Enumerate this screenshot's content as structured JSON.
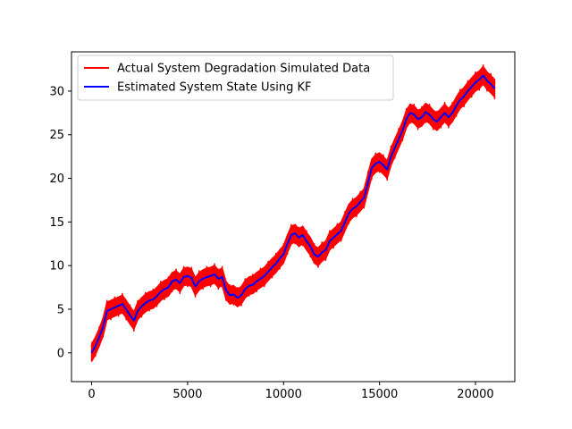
{
  "chart_data": {
    "type": "line",
    "title": "",
    "xlabel": "",
    "ylabel": "",
    "xlim": [
      -1050,
      22050
    ],
    "ylim": [
      -3.3,
      34.5
    ],
    "x_ticks": [
      0,
      5000,
      10000,
      15000,
      20000
    ],
    "y_ticks": [
      0,
      5,
      10,
      15,
      20,
      25,
      30
    ],
    "grid": false,
    "legend_position": "upper-left",
    "series": [
      {
        "name": "Actual System Degradation Simulated Data",
        "color": "#ff0000",
        "band_halfwidth": 1.0,
        "x": [
          0,
          200,
          400,
          600,
          800,
          1000,
          1200,
          1400,
          1600,
          1800,
          2000,
          2200,
          2400,
          2600,
          2800,
          3000,
          3200,
          3400,
          3600,
          3800,
          4000,
          4200,
          4400,
          4600,
          4800,
          5000,
          5200,
          5400,
          5600,
          5800,
          6000,
          6200,
          6400,
          6600,
          6800,
          7000,
          7200,
          7400,
          7600,
          7800,
          8000,
          8200,
          8400,
          8600,
          8800,
          9000,
          9200,
          9400,
          9600,
          9800,
          10000,
          10200,
          10400,
          10600,
          10800,
          11000,
          11200,
          11400,
          11600,
          11800,
          12000,
          12200,
          12400,
          12600,
          12800,
          13000,
          13200,
          13400,
          13600,
          13800,
          14000,
          14200,
          14400,
          14600,
          14800,
          15000,
          15200,
          15400,
          15600,
          15800,
          16000,
          16200,
          16400,
          16600,
          16800,
          17000,
          17200,
          17400,
          17600,
          17800,
          18000,
          18200,
          18400,
          18600,
          18800,
          19000,
          19200,
          19400,
          19600,
          19800,
          20000,
          20200,
          20400,
          20600,
          20800,
          21000
        ],
        "values": [
          0,
          0.8,
          1.8,
          3.0,
          4.8,
          5.0,
          5.2,
          5.4,
          5.6,
          5.0,
          4.3,
          3.7,
          4.8,
          5.3,
          5.7,
          6.0,
          6.1,
          6.5,
          7.0,
          7.3,
          7.5,
          8.2,
          8.4,
          8.0,
          8.7,
          8.8,
          8.6,
          7.6,
          8.2,
          8.5,
          8.7,
          8.8,
          9.0,
          8.5,
          8.7,
          7.2,
          6.6,
          6.7,
          6.3,
          6.6,
          7.3,
          7.7,
          7.8,
          8.2,
          8.5,
          8.8,
          9.3,
          9.8,
          10.2,
          10.8,
          11.3,
          12.5,
          13.5,
          13.7,
          13.2,
          13.5,
          12.8,
          12.2,
          11.3,
          11.0,
          11.5,
          11.8,
          12.8,
          13.2,
          13.6,
          14.0,
          15.0,
          16.0,
          16.5,
          16.8,
          17.3,
          17.8,
          19.5,
          21.2,
          21.7,
          21.9,
          21.5,
          21.0,
          22.5,
          23.5,
          24.5,
          25.5,
          26.8,
          27.5,
          27.3,
          26.8,
          27.0,
          27.6,
          27.3,
          26.8,
          26.5,
          27.0,
          27.5,
          27.0,
          27.5,
          28.3,
          29.0,
          29.4,
          30.0,
          30.5,
          31.0,
          31.3,
          31.8,
          31.2,
          30.8,
          30.3
        ]
      },
      {
        "name": "Estimated System State Using KF",
        "color": "#0000ff",
        "x": [
          0,
          200,
          400,
          600,
          800,
          1000,
          1200,
          1400,
          1600,
          1800,
          2000,
          2200,
          2400,
          2600,
          2800,
          3000,
          3200,
          3400,
          3600,
          3800,
          4000,
          4200,
          4400,
          4600,
          4800,
          5000,
          5200,
          5400,
          5600,
          5800,
          6000,
          6200,
          6400,
          6600,
          6800,
          7000,
          7200,
          7400,
          7600,
          7800,
          8000,
          8200,
          8400,
          8600,
          8800,
          9000,
          9200,
          9400,
          9600,
          9800,
          10000,
          10200,
          10400,
          10600,
          10800,
          11000,
          11200,
          11400,
          11600,
          11800,
          12000,
          12200,
          12400,
          12600,
          12800,
          13000,
          13200,
          13400,
          13600,
          13800,
          14000,
          14200,
          14400,
          14600,
          14800,
          15000,
          15200,
          15400,
          15600,
          15800,
          16000,
          16200,
          16400,
          16600,
          16800,
          17000,
          17200,
          17400,
          17600,
          17800,
          18000,
          18200,
          18400,
          18600,
          18800,
          19000,
          19200,
          19400,
          19600,
          19800,
          20000,
          20200,
          20400,
          20600,
          20800,
          21000
        ],
        "values": [
          0,
          0.8,
          1.8,
          3.0,
          4.8,
          5.0,
          5.2,
          5.4,
          5.6,
          5.0,
          4.3,
          3.7,
          4.8,
          5.3,
          5.7,
          6.0,
          6.1,
          6.5,
          7.0,
          7.3,
          7.5,
          8.2,
          8.4,
          8.0,
          8.7,
          8.8,
          8.6,
          7.6,
          8.2,
          8.5,
          8.7,
          8.8,
          9.0,
          8.5,
          8.7,
          7.2,
          6.6,
          6.7,
          6.3,
          6.6,
          7.3,
          7.7,
          7.8,
          8.2,
          8.5,
          8.8,
          9.3,
          9.8,
          10.2,
          10.8,
          11.3,
          12.5,
          13.5,
          13.7,
          13.2,
          13.5,
          12.8,
          12.2,
          11.3,
          11.0,
          11.5,
          11.8,
          12.8,
          13.2,
          13.6,
          14.0,
          15.0,
          16.0,
          16.5,
          16.8,
          17.3,
          17.8,
          19.5,
          21.2,
          21.7,
          21.9,
          21.5,
          21.0,
          22.5,
          23.5,
          24.5,
          25.5,
          26.8,
          27.5,
          27.3,
          26.8,
          27.0,
          27.6,
          27.3,
          26.8,
          26.5,
          27.0,
          27.5,
          27.0,
          27.5,
          28.3,
          29.0,
          29.4,
          30.0,
          30.5,
          31.0,
          31.3,
          31.8,
          31.2,
          30.8,
          30.3
        ]
      }
    ]
  }
}
